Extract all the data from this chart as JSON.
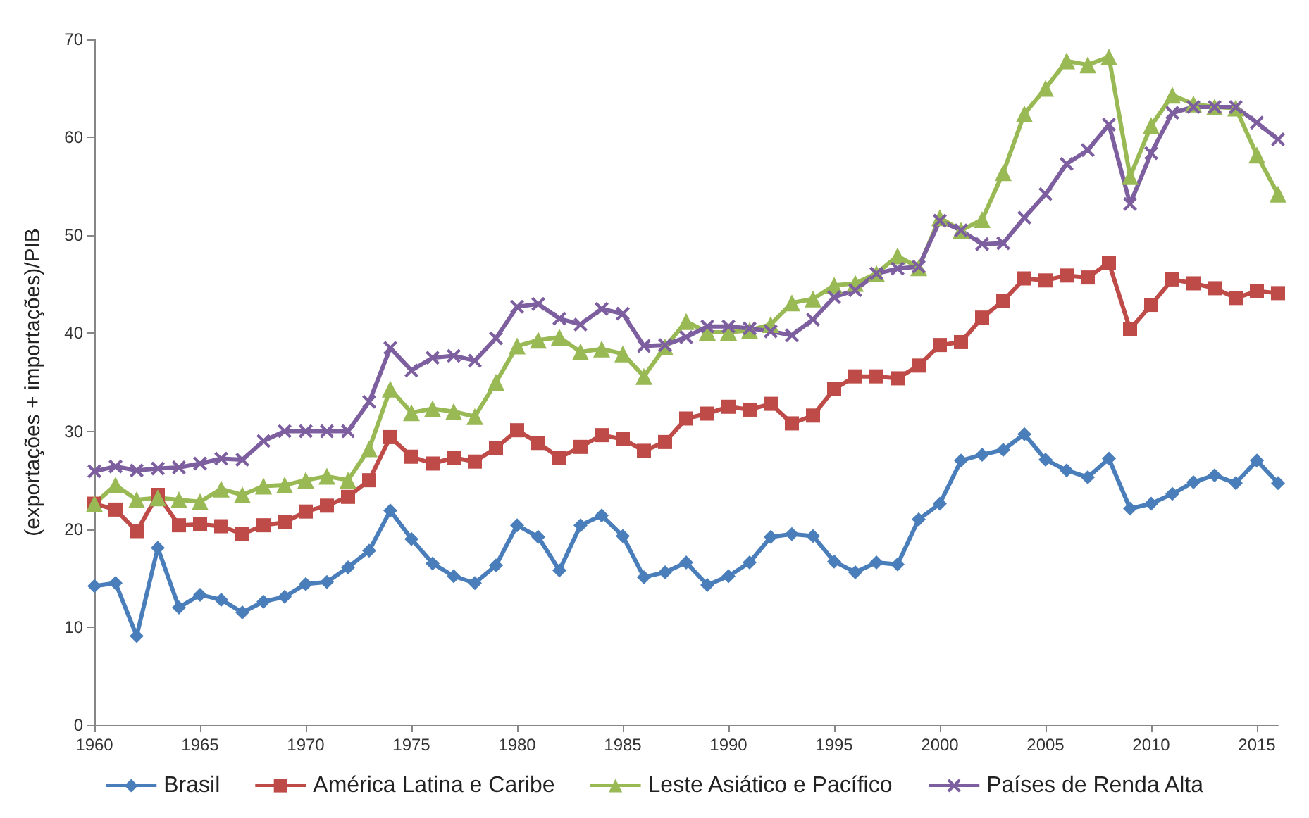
{
  "chart_data": {
    "type": "line",
    "ylabel": "(exportações + importações)/PIB",
    "x": [
      1960,
      1961,
      1962,
      1963,
      1964,
      1965,
      1966,
      1967,
      1968,
      1969,
      1970,
      1971,
      1972,
      1973,
      1974,
      1975,
      1976,
      1977,
      1978,
      1979,
      1980,
      1981,
      1982,
      1983,
      1984,
      1985,
      1986,
      1987,
      1988,
      1989,
      1990,
      1991,
      1992,
      1993,
      1994,
      1995,
      1996,
      1997,
      1998,
      1999,
      2000,
      2001,
      2002,
      2003,
      2004,
      2005,
      2006,
      2007,
      2008,
      2009,
      2010,
      2011,
      2012,
      2013,
      2014,
      2015,
      2016
    ],
    "series": [
      {
        "name": "Brasil",
        "color": "#4a7ebb",
        "marker": "diamond",
        "values": [
          14.2,
          14.5,
          9.1,
          18.1,
          12.0,
          13.3,
          12.8,
          11.5,
          12.6,
          13.1,
          14.4,
          14.6,
          16.1,
          17.8,
          21.9,
          19.0,
          16.5,
          15.2,
          14.5,
          16.3,
          20.4,
          19.2,
          15.8,
          20.4,
          21.4,
          19.3,
          15.1,
          15.6,
          16.6,
          14.3,
          15.2,
          16.6,
          19.2,
          19.5,
          19.3,
          16.7,
          15.6,
          16.6,
          16.4,
          21.0,
          22.6,
          27.0,
          27.6,
          28.1,
          29.7,
          27.1,
          26.0,
          25.3,
          27.2,
          22.1,
          22.6,
          23.6,
          24.8,
          25.5,
          24.7,
          27.0,
          24.7
        ]
      },
      {
        "name": "América Latina e Caribe",
        "color": "#be4b48",
        "marker": "square",
        "values": [
          22.6,
          22.0,
          19.8,
          23.5,
          20.4,
          20.5,
          20.3,
          19.5,
          20.4,
          20.7,
          21.8,
          22.4,
          23.3,
          25.0,
          29.4,
          27.4,
          26.7,
          27.3,
          26.9,
          28.3,
          30.1,
          28.8,
          27.3,
          28.4,
          29.6,
          29.2,
          28.0,
          28.9,
          31.3,
          31.8,
          32.5,
          32.2,
          32.8,
          30.8,
          31.6,
          34.3,
          35.6,
          35.6,
          35.4,
          36.7,
          38.8,
          39.1,
          41.6,
          43.3,
          45.6,
          45.4,
          45.9,
          45.7,
          47.2,
          40.4,
          42.9,
          45.5,
          45.1,
          44.6,
          43.6,
          44.3,
          44.1
        ]
      },
      {
        "name": "Leste Asiático e Pacífico",
        "color": "#98b954",
        "marker": "triangle",
        "values": [
          22.6,
          24.5,
          23.0,
          23.2,
          23.0,
          22.8,
          24.1,
          23.5,
          24.4,
          24.5,
          25.0,
          25.4,
          25.0,
          28.2,
          34.3,
          31.9,
          32.3,
          32.0,
          31.5,
          35.0,
          38.7,
          39.3,
          39.6,
          38.1,
          38.4,
          37.9,
          35.6,
          38.6,
          41.2,
          40.1,
          40.1,
          40.3,
          40.9,
          43.1,
          43.5,
          44.9,
          45.1,
          46.1,
          47.9,
          46.7,
          51.8,
          50.5,
          51.6,
          56.4,
          62.4,
          65.0,
          67.8,
          67.4,
          68.2,
          56.0,
          61.2,
          64.3,
          63.4,
          63.1,
          63.0,
          58.2,
          54.2
        ]
      },
      {
        "name": "Países de Renda Alta",
        "color": "#7d5fa0",
        "marker": "cross",
        "values": [
          25.9,
          26.4,
          26.0,
          26.2,
          26.3,
          26.7,
          27.2,
          27.1,
          29.0,
          30.0,
          30.0,
          30.0,
          30.0,
          33.0,
          38.5,
          36.2,
          37.5,
          37.7,
          37.2,
          39.5,
          42.7,
          43.0,
          41.5,
          40.9,
          42.5,
          42.0,
          38.7,
          38.8,
          39.6,
          40.7,
          40.7,
          40.5,
          40.2,
          39.8,
          41.4,
          43.7,
          44.4,
          46.1,
          46.6,
          46.8,
          51.5,
          50.5,
          49.1,
          49.2,
          51.8,
          54.2,
          57.3,
          58.7,
          61.3,
          53.2,
          58.4,
          62.5,
          63.1,
          63.1,
          63.1,
          61.5,
          59.8
        ]
      }
    ],
    "xlim": [
      1960,
      2016
    ],
    "xticks": [
      1960,
      1965,
      1970,
      1975,
      1980,
      1985,
      1990,
      1995,
      2000,
      2005,
      2010,
      2015
    ],
    "ylim": [
      0,
      70
    ],
    "yticks": [
      0,
      10,
      20,
      30,
      40,
      50,
      60,
      70
    ],
    "grid": false,
    "legend": "bottom"
  }
}
